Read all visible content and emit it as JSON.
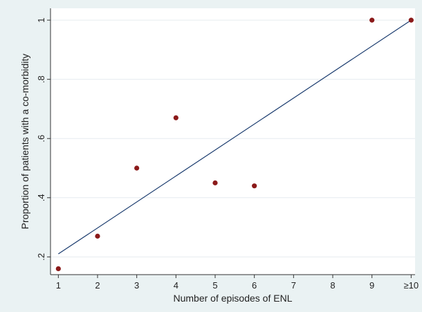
{
  "chart_data": {
    "type": "scatter",
    "title": "",
    "xlabel": "Number of episodes of ENL",
    "ylabel": "Proportion of patients with a co-morbidity",
    "x_ticks": [
      {
        "value": 1,
        "label": "1"
      },
      {
        "value": 2,
        "label": "2"
      },
      {
        "value": 3,
        "label": "3"
      },
      {
        "value": 4,
        "label": "4"
      },
      {
        "value": 5,
        "label": "5"
      },
      {
        "value": 6,
        "label": "6"
      },
      {
        "value": 7,
        "label": "7"
      },
      {
        "value": 8,
        "label": "8"
      },
      {
        "value": 9,
        "label": "9"
      },
      {
        "value": 10,
        "label": "≥10"
      }
    ],
    "y_ticks": [
      {
        "value": 0.2,
        "label": ".2"
      },
      {
        "value": 0.4,
        "label": ".4"
      },
      {
        "value": 0.6,
        "label": ".6"
      },
      {
        "value": 0.8,
        "label": ".8"
      },
      {
        "value": 1.0,
        "label": "1"
      }
    ],
    "xlim": [
      0.8,
      10.1
    ],
    "ylim": [
      0.14,
      1.04
    ],
    "grid": "horizontal",
    "points": [
      {
        "x": 1,
        "y": 0.16
      },
      {
        "x": 2,
        "y": 0.27
      },
      {
        "x": 3,
        "y": 0.5
      },
      {
        "x": 4,
        "y": 0.67
      },
      {
        "x": 5,
        "y": 0.45
      },
      {
        "x": 6,
        "y": 0.44
      },
      {
        "x": 9,
        "y": 1.0
      },
      {
        "x": 10,
        "y": 1.0
      }
    ],
    "fit_line": {
      "x1": 1,
      "y1": 0.21,
      "x2": 10,
      "y2": 1.0
    },
    "colors": {
      "background": "#eaf2f3",
      "plot_area": "#ffffff",
      "marker": "#8b1a1a",
      "fit_line": "#1a3b6e",
      "grid": "#e6ecef",
      "axis": "#333333"
    }
  }
}
